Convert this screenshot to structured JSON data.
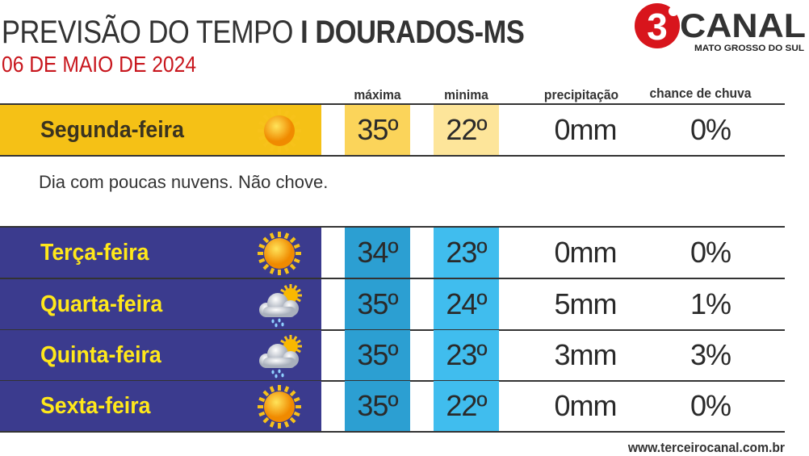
{
  "header": {
    "title_light": "PREVISÃO DO TEMPO",
    "title_bold": "I DOURADOS-MS",
    "date": "06 DE MAIO DE 2024"
  },
  "logo": {
    "number": "3",
    "name": "CANAL",
    "region": "MATO GROSSO DO SUL"
  },
  "columns": {
    "max": "máxima",
    "min": "minima",
    "precip": "precipitação",
    "chance": "chance de chuva"
  },
  "today": {
    "day": "Segunda-feira",
    "icon": "sun-icon",
    "max": "35º",
    "min": "22º",
    "precip": "0mm",
    "chance": "0%",
    "description": "Dia com poucas nuvens. Não chove."
  },
  "forecast": [
    {
      "day": "Terça-feira",
      "icon": "sun-icon",
      "max": "34º",
      "min": "23º",
      "precip": "0mm",
      "chance": "0%"
    },
    {
      "day": "Quarta-feira",
      "icon": "cloud-sun-rain-icon",
      "max": "35º",
      "min": "24º",
      "precip": "5mm",
      "chance": "1%"
    },
    {
      "day": "Quinta-feira",
      "icon": "cloud-sun-rain-icon",
      "max": "35º",
      "min": "23º",
      "precip": "3mm",
      "chance": "3%"
    },
    {
      "day": "Sexta-feira",
      "icon": "sun-icon",
      "max": "35º",
      "min": "22º",
      "precip": "0mm",
      "chance": "0%"
    }
  ],
  "footer": {
    "url": "www.terceirocanal.com.br"
  },
  "colors": {
    "today_day": "#f5c116",
    "today_max": "#fbd45a",
    "today_min": "#fde59a",
    "week_day": "#3b3b8e",
    "week_max": "#2c9fd2",
    "week_min": "#40bdee",
    "week_day_text": "#ffe81a",
    "date": "#c8161d"
  }
}
